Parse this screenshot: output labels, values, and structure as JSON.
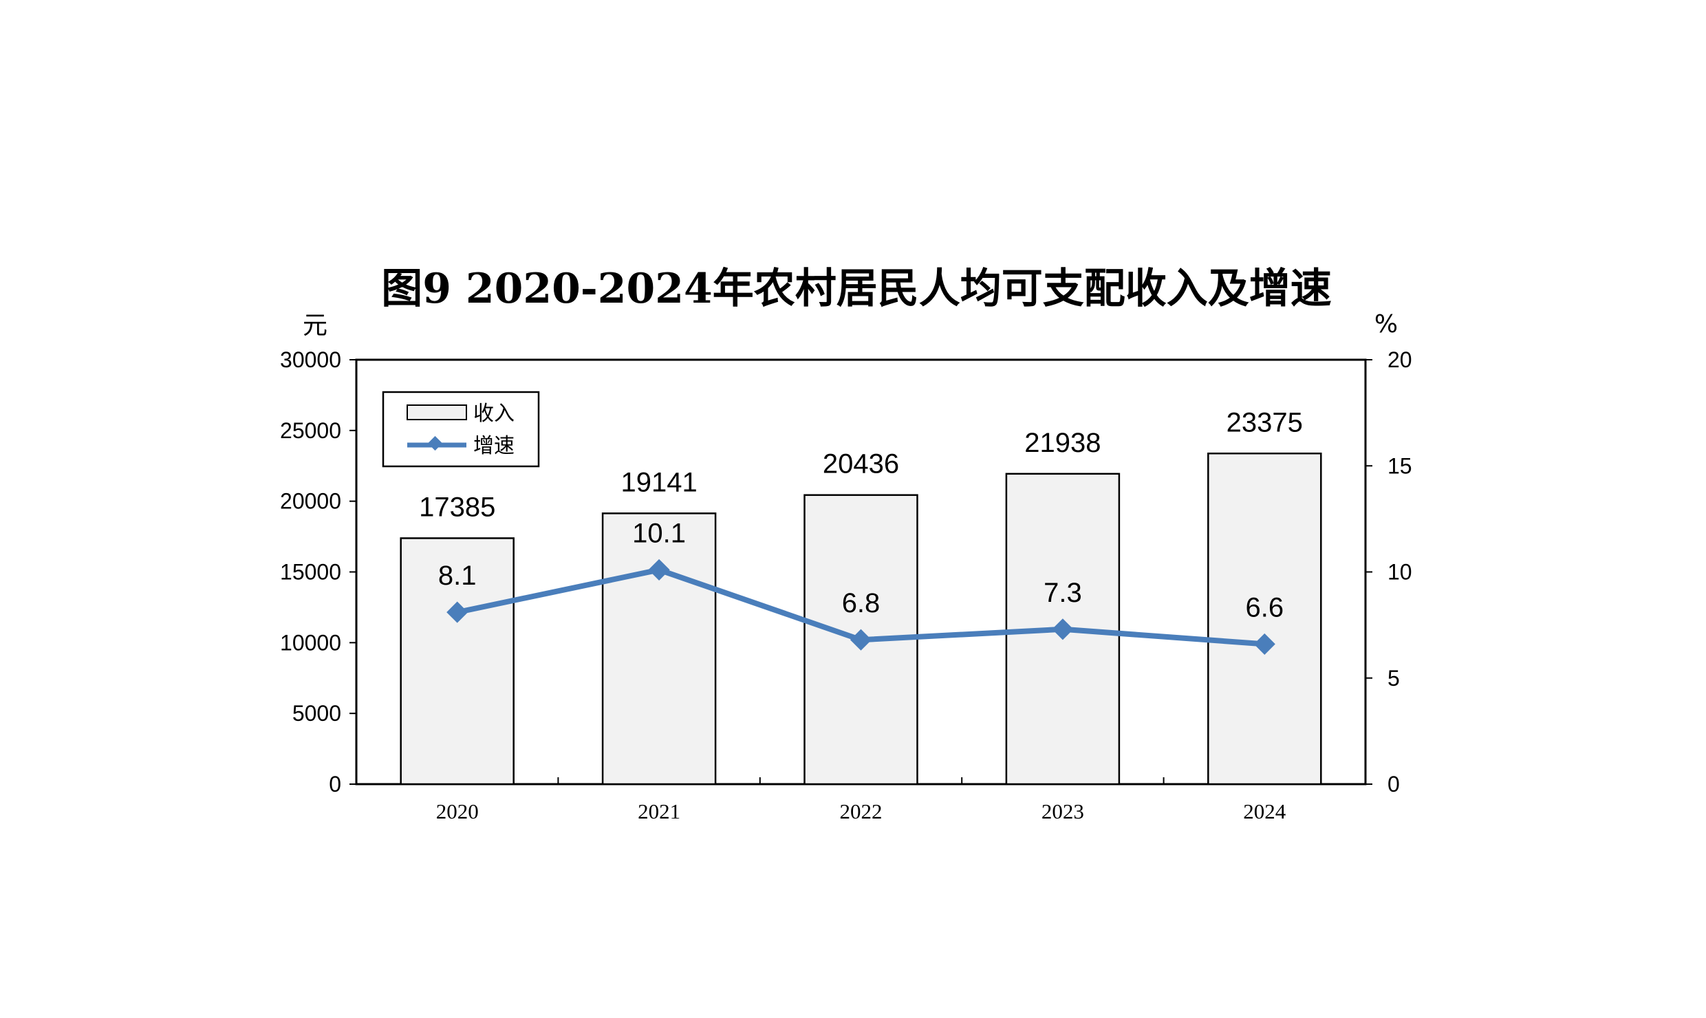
{
  "chart_data": {
    "type": "bar",
    "title": "图9   2020-2024年农村居民人均可支配收入及增速",
    "categories": [
      "2020",
      "2021",
      "2022",
      "2023",
      "2024"
    ],
    "series": [
      {
        "name": "收入",
        "type": "bar",
        "axis": "left",
        "values": [
          17385,
          19141,
          20436,
          21938,
          23375
        ]
      },
      {
        "name": "增速",
        "type": "line",
        "axis": "right",
        "values": [
          8.1,
          10.1,
          6.8,
          7.3,
          6.6
        ]
      }
    ],
    "y_left": {
      "unit": "元",
      "ylim": [
        0,
        30000
      ],
      "ticks": [
        "0",
        "5000",
        "10000",
        "15000",
        "20000",
        "25000",
        "30000"
      ]
    },
    "y_right": {
      "unit": "%",
      "ylim": [
        0,
        20
      ],
      "ticks": [
        "0",
        "5",
        "10",
        "15",
        "20"
      ]
    },
    "legend": {
      "position": "top-left",
      "entries": [
        "收入",
        "增速"
      ]
    },
    "grid": false,
    "colors": {
      "bar_fill": "#f2f2f2",
      "bar_stroke": "#000000",
      "line": "#4a7ebb"
    }
  }
}
